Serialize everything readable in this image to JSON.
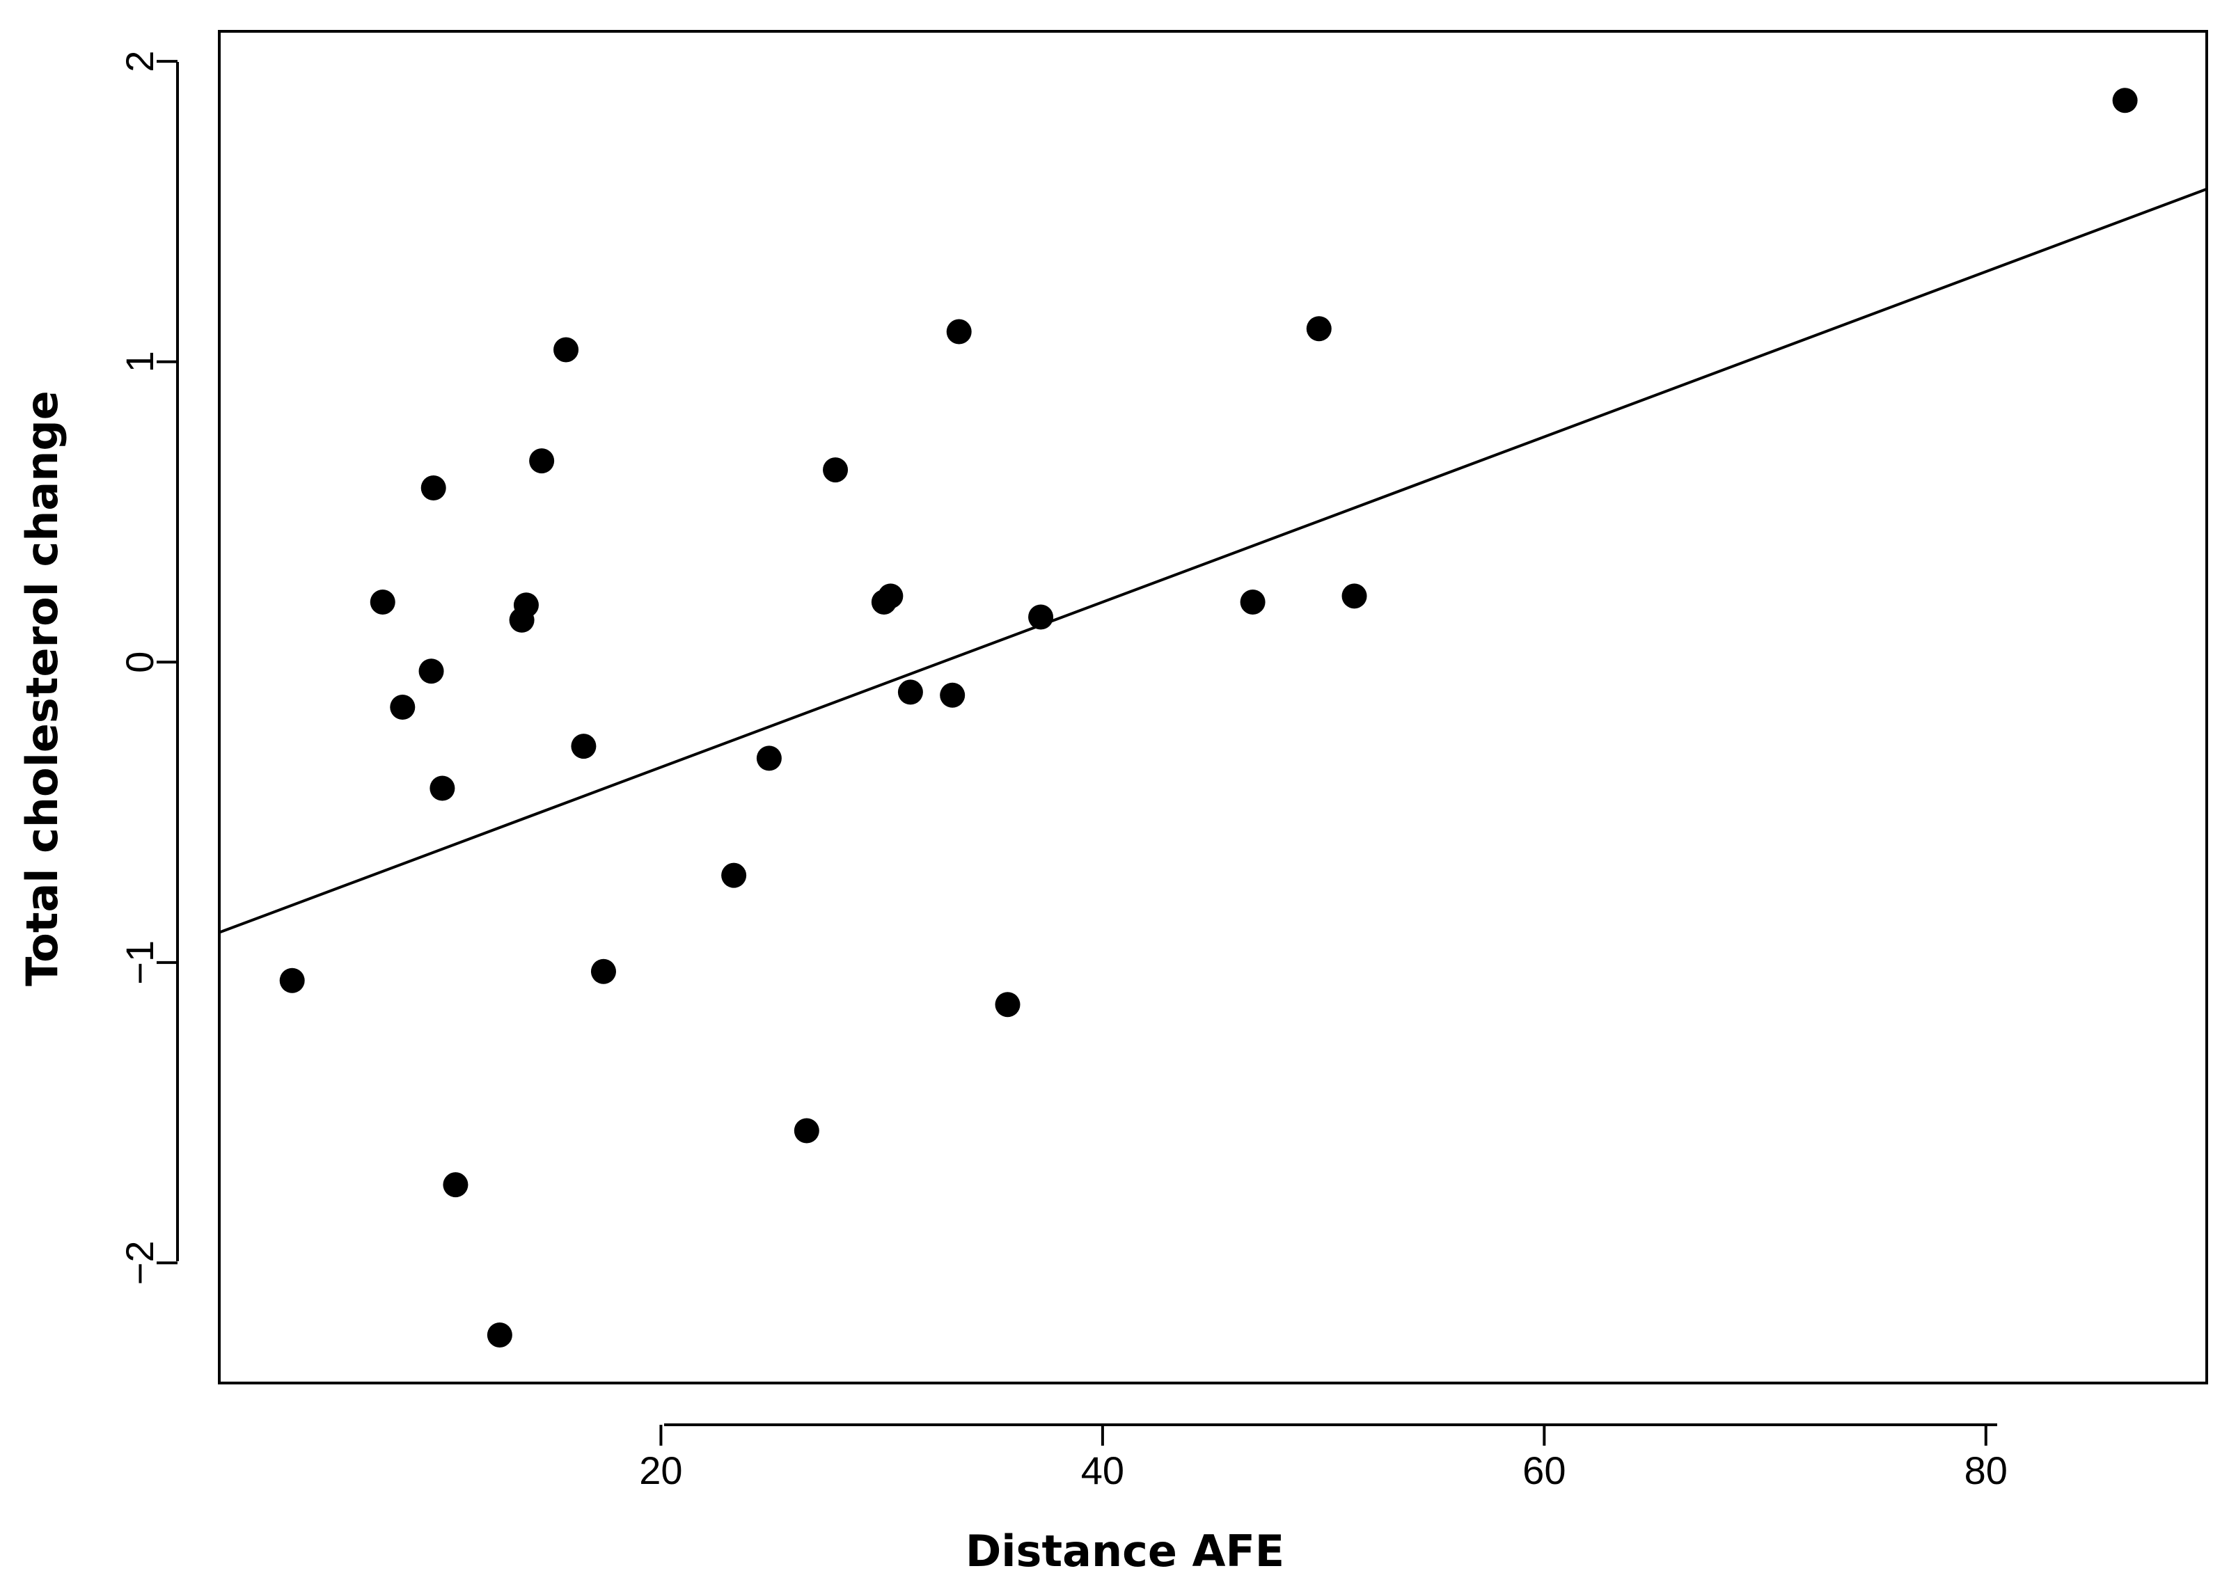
{
  "chart_data": {
    "type": "scatter",
    "title": "",
    "xlabel": "Distance AFE",
    "ylabel": "Total cholesterol change",
    "xlim": [
      0,
      90
    ],
    "ylim": [
      -2.4,
      2.1
    ],
    "x_ticks": [
      20,
      40,
      60,
      80
    ],
    "y_ticks": [
      -2,
      -1,
      0,
      1,
      2
    ],
    "x_tick_labels": [
      "20",
      "40",
      "60",
      "80"
    ],
    "y_tick_labels": [
      "−2",
      "−1",
      "0",
      "1",
      "2"
    ],
    "grid": false,
    "legend": "none",
    "points": [
      {
        "x": 3.3,
        "y": -1.06
      },
      {
        "x": 7.4,
        "y": 0.2
      },
      {
        "x": 8.3,
        "y": -0.15
      },
      {
        "x": 9.6,
        "y": -0.03
      },
      {
        "x": 9.7,
        "y": 0.58
      },
      {
        "x": 10.1,
        "y": -0.42
      },
      {
        "x": 10.7,
        "y": -1.74
      },
      {
        "x": 12.7,
        "y": -2.24
      },
      {
        "x": 13.7,
        "y": 0.14
      },
      {
        "x": 13.9,
        "y": 0.19
      },
      {
        "x": 14.6,
        "y": 0.67
      },
      {
        "x": 15.7,
        "y": 1.04
      },
      {
        "x": 16.5,
        "y": -0.28
      },
      {
        "x": 17.4,
        "y": -1.03
      },
      {
        "x": 23.3,
        "y": -0.71
      },
      {
        "x": 24.9,
        "y": -0.32
      },
      {
        "x": 26.6,
        "y": -1.56
      },
      {
        "x": 27.9,
        "y": 0.64
      },
      {
        "x": 30.1,
        "y": 0.2
      },
      {
        "x": 30.4,
        "y": 0.22
      },
      {
        "x": 31.3,
        "y": -0.1
      },
      {
        "x": 33.2,
        "y": -0.11
      },
      {
        "x": 33.5,
        "y": 1.1
      },
      {
        "x": 35.7,
        "y": -1.14
      },
      {
        "x": 37.2,
        "y": 0.15
      },
      {
        "x": 46.8,
        "y": 0.2
      },
      {
        "x": 49.8,
        "y": 1.11
      },
      {
        "x": 51.4,
        "y": 0.22
      },
      {
        "x": 86.3,
        "y": 1.87
      }
    ],
    "fit_line": {
      "type": "linear",
      "intercept": -0.9,
      "slope": 0.0275
    },
    "colors": {
      "points": "#000000",
      "line": "#000000",
      "axes": "#000000"
    }
  }
}
